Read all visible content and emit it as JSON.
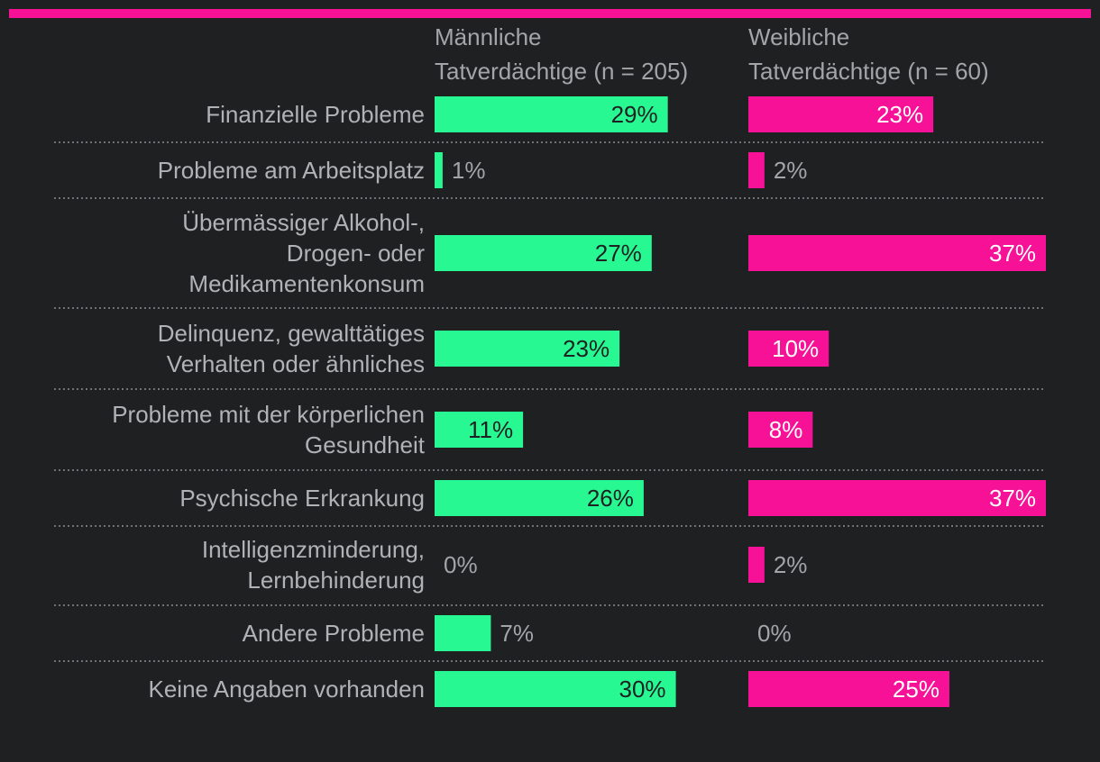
{
  "colors": {
    "background": "#1f2022",
    "male": "#27f891",
    "female": "#f71197",
    "accent_bar": "#f71197",
    "label_text": "#b0b2b5",
    "value_text_inside_male": "#1f2022",
    "value_text_inside_female": "#ffffff"
  },
  "chart_data": {
    "type": "bar",
    "orientation": "horizontal",
    "categories": [
      "Finanzielle Probleme",
      "Probleme am Arbeitsplatz",
      "Übermässiger Alkohol-, Drogen- oder Medikamentenkonsum",
      "Delinquenz, gewalttätiges Verhalten oder ähnliches",
      "Probleme mit der körperlichen Gesundheit",
      "Psychische Erkrankung",
      "Intelligenzminderung, Lernbehinderung",
      "Andere Probleme",
      "Keine Angaben vorhanden"
    ],
    "category_lines": [
      [
        "Finanzielle Probleme"
      ],
      [
        "Probleme am Arbeitsplatz"
      ],
      [
        "Übermässiger Alkohol-,",
        "Drogen- oder",
        "Medikamentenkonsum"
      ],
      [
        "Delinquenz, gewalttätiges",
        "Verhalten oder ähnliches"
      ],
      [
        "Probleme mit der körperlichen",
        "Gesundheit"
      ],
      [
        "Psychische Erkrankung"
      ],
      [
        "Intelligenzminderung,",
        "Lernbehinderung"
      ],
      [
        "Andere Probleme"
      ],
      [
        "Keine Angaben vorhanden"
      ]
    ],
    "series": [
      {
        "name": "Männliche Tatverdächtige (n = 205)",
        "header_lines": [
          "Männliche",
          "Tatverdächtige (n = 205)"
        ],
        "values": [
          29,
          1,
          27,
          23,
          11,
          26,
          0,
          7,
          30
        ],
        "labels": [
          "29%",
          "1%",
          "27%",
          "23%",
          "11%",
          "26%",
          "0%",
          "7%",
          "30%"
        ]
      },
      {
        "name": "Weibliche Tatverdächtige (n = 60)",
        "header_lines": [
          "Weibliche",
          "Tatverdächtige (n = 60)"
        ],
        "values": [
          23,
          2,
          37,
          10,
          8,
          37,
          2,
          0,
          25
        ],
        "labels": [
          "23%",
          "2%",
          "37%",
          "10%",
          "8%",
          "37%",
          "2%",
          "0%",
          "25%"
        ]
      }
    ],
    "unit": "%",
    "xlim": [
      0,
      37
    ]
  }
}
